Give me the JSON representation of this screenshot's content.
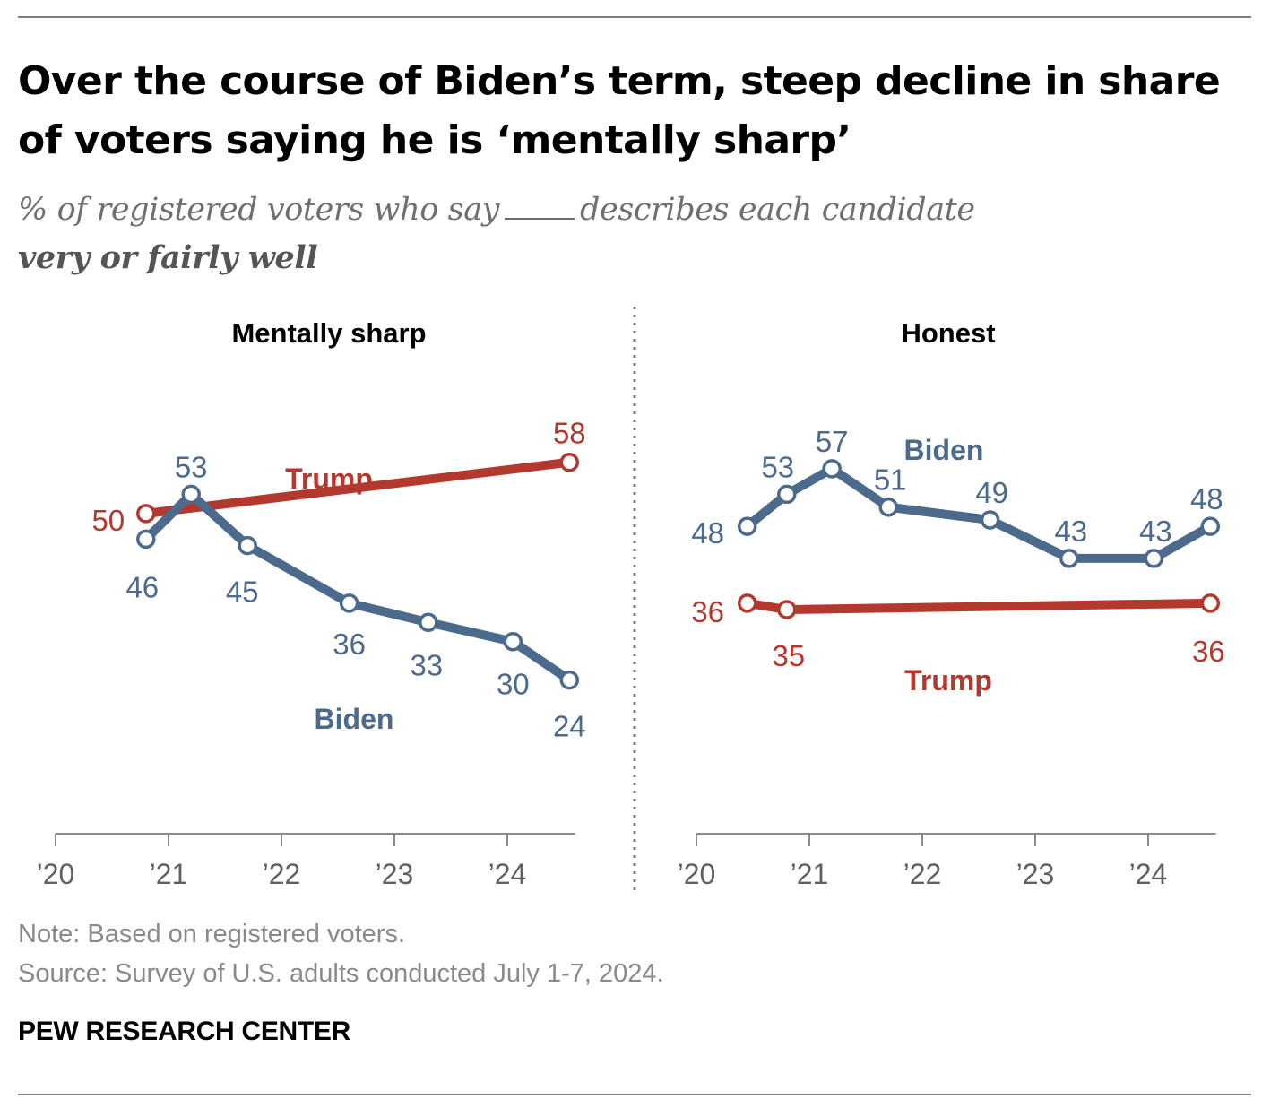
{
  "title": "Over the course of Biden’s term, steep decline in share of voters saying he is ‘mentally sharp’",
  "subtitle_part1": "% of registered voters who say",
  "subtitle_part2": "describes each candidate",
  "subtitle_part3": "very or fairly well",
  "note": "Note: Based on registered voters.",
  "source": "Source: Survey of U.S. adults conducted July 1-7, 2024.",
  "brand": "PEW RESEARCH CENTER",
  "colors": {
    "biden": "#4c6a8c",
    "trump": "#b3392f",
    "axis": "#8c8c8c",
    "tick_text": "#606060"
  },
  "chart_data": [
    {
      "type": "line",
      "title": "Mentally sharp",
      "x_ticks": [
        "’20",
        "’21",
        "’22",
        "’23",
        "’24"
      ],
      "xlim": [
        2020.0,
        2024.6
      ],
      "ylim": [
        0,
        70
      ],
      "grid": false,
      "legend": "direct labels",
      "series": [
        {
          "name": "Trump",
          "color": "#b3392f",
          "points": [
            {
              "x": 2020.8,
              "y": 50
            },
            {
              "x": 2024.55,
              "y": 58
            }
          ]
        },
        {
          "name": "Biden",
          "color": "#4c6a8c",
          "points": [
            {
              "x": 2020.8,
              "y": 46
            },
            {
              "x": 2021.2,
              "y": 53
            },
            {
              "x": 2021.7,
              "y": 45
            },
            {
              "x": 2022.6,
              "y": 36
            },
            {
              "x": 2023.3,
              "y": 33
            },
            {
              "x": 2024.05,
              "y": 30
            },
            {
              "x": 2024.55,
              "y": 24
            }
          ]
        }
      ]
    },
    {
      "type": "line",
      "title": "Honest",
      "x_ticks": [
        "’20",
        "’21",
        "’22",
        "’23",
        "’24"
      ],
      "xlim": [
        2020.0,
        2024.6
      ],
      "ylim": [
        0,
        70
      ],
      "grid": false,
      "legend": "direct labels",
      "series": [
        {
          "name": "Biden",
          "color": "#4c6a8c",
          "points": [
            {
              "x": 2020.45,
              "y": 48
            },
            {
              "x": 2020.8,
              "y": 53
            },
            {
              "x": 2021.2,
              "y": 57
            },
            {
              "x": 2021.7,
              "y": 51
            },
            {
              "x": 2022.6,
              "y": 49
            },
            {
              "x": 2023.3,
              "y": 43
            },
            {
              "x": 2024.05,
              "y": 43
            },
            {
              "x": 2024.55,
              "y": 48
            }
          ]
        },
        {
          "name": "Trump",
          "color": "#b3392f",
          "points": [
            {
              "x": 2020.45,
              "y": 36
            },
            {
              "x": 2020.8,
              "y": 35
            },
            {
              "x": 2024.55,
              "y": 36
            }
          ]
        }
      ]
    }
  ]
}
